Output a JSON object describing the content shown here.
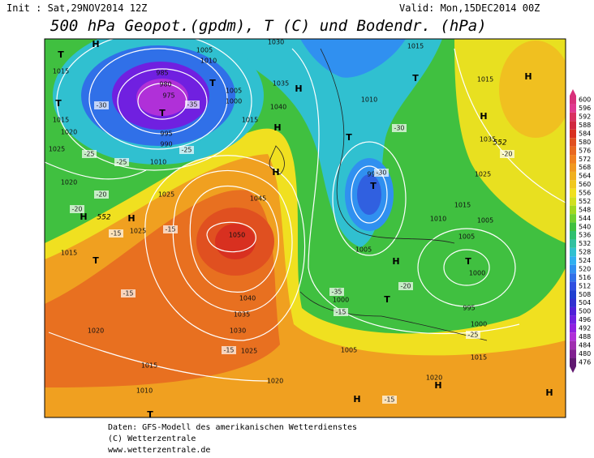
{
  "header": {
    "init": "Init : Sat,29NOV2014 12Z",
    "valid": "Valid: Mon,15DEC2014 00Z",
    "title": "500 hPa Geopot.(gpdm), T (C) und Bodendr. (hPa)"
  },
  "footer": [
    "Daten: GFS-Modell des amerikanischen Wetterdienstes",
    "(C) Wetterzentrale",
    "www.wetterzentrale.de"
  ],
  "map": {
    "pressure_labels": [
      "1015",
      "1015",
      "1020",
      "1025",
      "1010",
      "1020",
      "1025",
      "995",
      "990",
      "975",
      "980",
      "985",
      "1005",
      "1010",
      "1030",
      "1035",
      "1040",
      "1005",
      "1000",
      "1015",
      "1045",
      "1050",
      "1040",
      "1035",
      "1030",
      "1025",
      "1020",
      "1015",
      "1010",
      "1020",
      "1025",
      "1015",
      "1005",
      "1000",
      "995",
      "1010",
      "1005",
      "1015",
      "1010",
      "1005",
      "1000",
      "995",
      "1000",
      "1005",
      "1015",
      "1020",
      "1015",
      "1025",
      "1035",
      "1015"
    ],
    "centers": [
      "T",
      "H",
      "T",
      "T",
      "T",
      "H",
      "H",
      "H",
      "H",
      "H",
      "T",
      "T",
      "T",
      "T",
      "H",
      "H",
      "T",
      "H",
      "T",
      "H",
      "T",
      "H",
      "H"
    ],
    "temp_labels": [
      "-30",
      "-25",
      "-35",
      "-20",
      "-25",
      "-15",
      "-15",
      "-25",
      "-20",
      "-35",
      "-30",
      "-30",
      "-20",
      "-15",
      "-20",
      "-25",
      "-15",
      "-15",
      "-15"
    ],
    "contour_labels": [
      "552",
      "552"
    ]
  },
  "colorbar": {
    "levels": [
      600,
      596,
      592,
      588,
      584,
      580,
      576,
      572,
      568,
      564,
      560,
      556,
      552,
      548,
      544,
      540,
      536,
      532,
      528,
      524,
      520,
      516,
      512,
      508,
      504,
      500,
      496,
      492,
      488,
      484,
      480,
      476
    ],
    "colors": [
      "#d8307a",
      "#e03890",
      "#d83060",
      "#d02840",
      "#d83020",
      "#e05020",
      "#e86820",
      "#f08020",
      "#f09820",
      "#f0b020",
      "#f0c820",
      "#f0e020",
      "#d0e020",
      "#a0d820",
      "#70d030",
      "#40c040",
      "#30c070",
      "#30c0a0",
      "#30c0d0",
      "#30b0f0",
      "#3090f0",
      "#3070e8",
      "#3050e0",
      "#2040d0",
      "#3030d0",
      "#5020d8",
      "#7020e0",
      "#9020e0",
      "#b030d8",
      "#a030b0",
      "#802090",
      "#601870"
    ]
  }
}
